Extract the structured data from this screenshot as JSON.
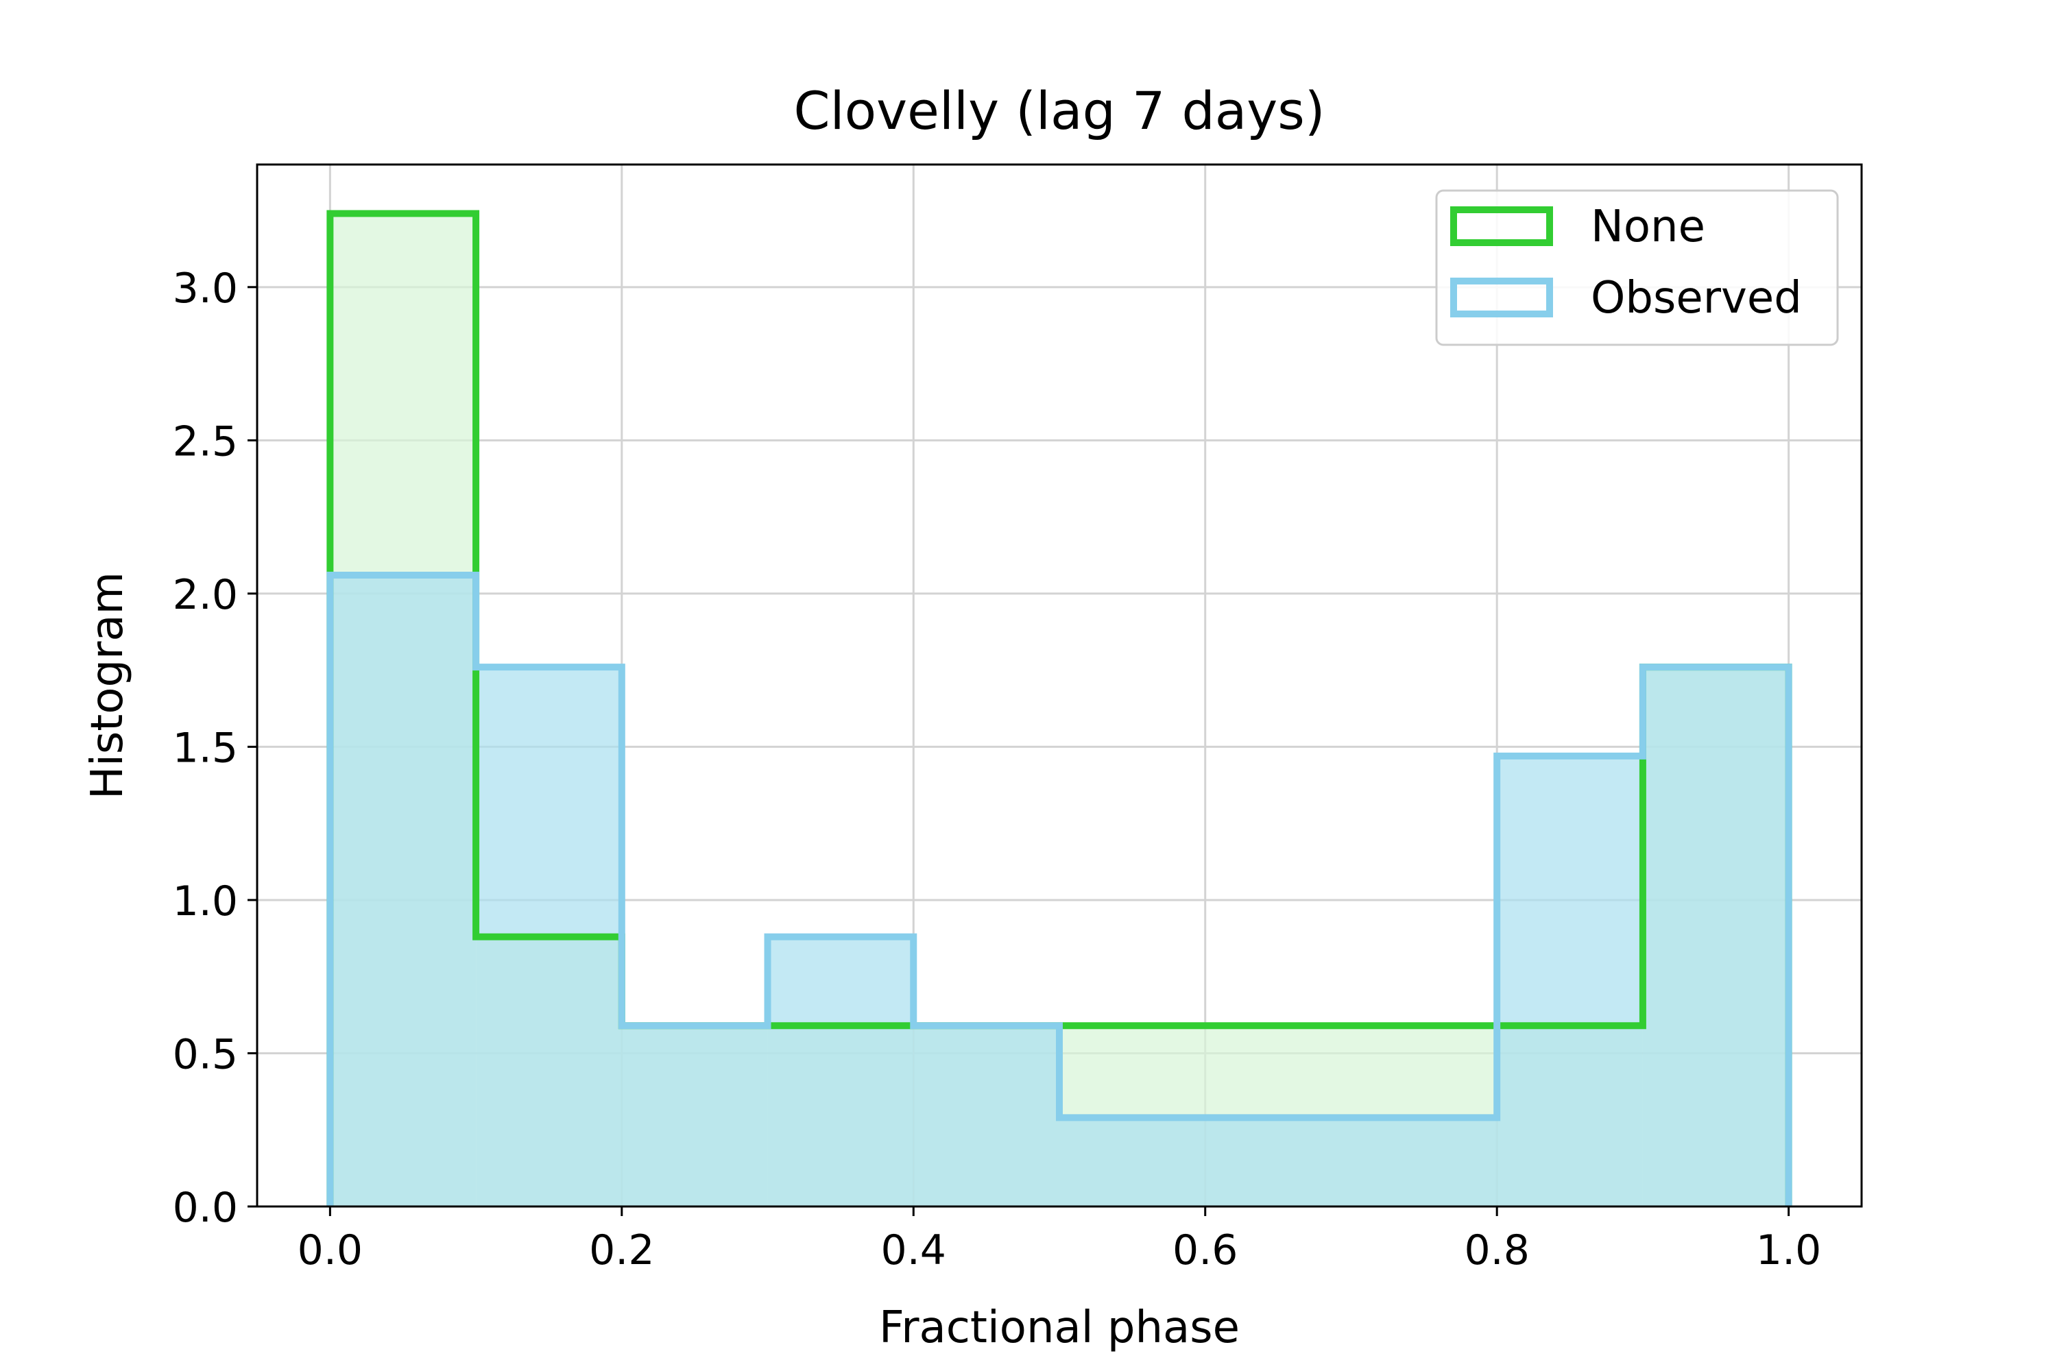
{
  "chart_data": {
    "type": "histogram",
    "title": "Clovelly (lag 7 days)",
    "xlabel": "Fractional phase",
    "ylabel": "Histogram",
    "xlim": [
      -0.05,
      1.05
    ],
    "ylim": [
      0,
      3.4
    ],
    "x_ticks": [
      0.0,
      0.2,
      0.4,
      0.6,
      0.8,
      1.0
    ],
    "x_tick_labels": [
      "0.0",
      "0.2",
      "0.4",
      "0.6",
      "0.8",
      "1.0"
    ],
    "y_ticks": [
      0.0,
      0.5,
      1.0,
      1.5,
      2.0,
      2.5,
      3.0
    ],
    "y_tick_labels": [
      "0.0",
      "0.5",
      "1.0",
      "1.5",
      "2.0",
      "2.5",
      "3.0"
    ],
    "grid": true,
    "legend_position": "top-right",
    "bin_edges": [
      0.0,
      0.1,
      0.2,
      0.3,
      0.4,
      0.5,
      0.6,
      0.7,
      0.8,
      0.9,
      1.0
    ],
    "series": [
      {
        "name": "None",
        "color": "#32cd32",
        "fill": "#d7f5d7",
        "values": [
          3.24,
          0.88,
          0.59,
          0.59,
          0.59,
          0.59,
          0.59,
          0.59,
          0.59,
          1.76
        ]
      },
      {
        "name": "Observed",
        "color": "#87ceeb",
        "fill": "#aadff0",
        "values": [
          2.06,
          1.76,
          0.59,
          0.88,
          0.59,
          0.29,
          0.29,
          0.29,
          1.47,
          1.76
        ]
      }
    ]
  }
}
